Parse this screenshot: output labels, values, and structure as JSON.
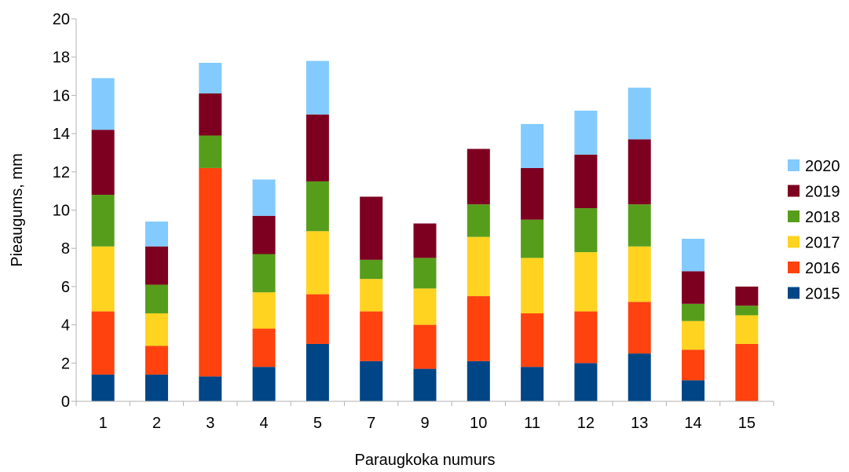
{
  "chart_data": {
    "type": "bar",
    "stacked": true,
    "xlabel": "Paraugkoka numurs",
    "ylabel": "Pieaugums, mm",
    "ylim": [
      0,
      20
    ],
    "yticks": [
      0,
      2,
      4,
      6,
      8,
      10,
      12,
      14,
      16,
      18,
      20
    ],
    "grid": false,
    "legend_position": "right",
    "categories": [
      "1",
      "2",
      "3",
      "4",
      "5",
      "7",
      "9",
      "10",
      "11",
      "12",
      "13",
      "14",
      "15"
    ],
    "series": [
      {
        "name": "2015",
        "color": "#004586",
        "values": [
          1.4,
          1.4,
          1.3,
          1.8,
          3.0,
          2.1,
          1.7,
          2.1,
          1.8,
          2.0,
          2.5,
          1.1,
          0.0
        ]
      },
      {
        "name": "2016",
        "color": "#ff420e",
        "values": [
          3.3,
          1.5,
          10.9,
          2.0,
          2.6,
          2.6,
          2.3,
          3.4,
          2.8,
          2.7,
          2.7,
          1.6,
          3.0
        ]
      },
      {
        "name": "2017",
        "color": "#ffd320",
        "values": [
          3.4,
          1.7,
          0.0,
          1.9,
          3.3,
          1.7,
          1.9,
          3.1,
          2.9,
          3.1,
          2.9,
          1.5,
          1.5
        ]
      },
      {
        "name": "2018",
        "color": "#579d1c",
        "values": [
          2.7,
          1.5,
          1.7,
          2.0,
          2.6,
          1.0,
          1.6,
          1.7,
          2.0,
          2.3,
          2.2,
          0.9,
          0.5
        ]
      },
      {
        "name": "2019",
        "color": "#7e0021",
        "values": [
          3.4,
          2.0,
          2.2,
          2.0,
          3.5,
          3.3,
          1.8,
          2.9,
          2.7,
          2.8,
          3.4,
          1.7,
          1.0
        ]
      },
      {
        "name": "2020",
        "color": "#83caff",
        "values": [
          2.7,
          1.3,
          1.6,
          1.9,
          2.8,
          0.0,
          0.0,
          0.0,
          2.3,
          2.3,
          2.7,
          1.7,
          0.0
        ]
      }
    ]
  }
}
